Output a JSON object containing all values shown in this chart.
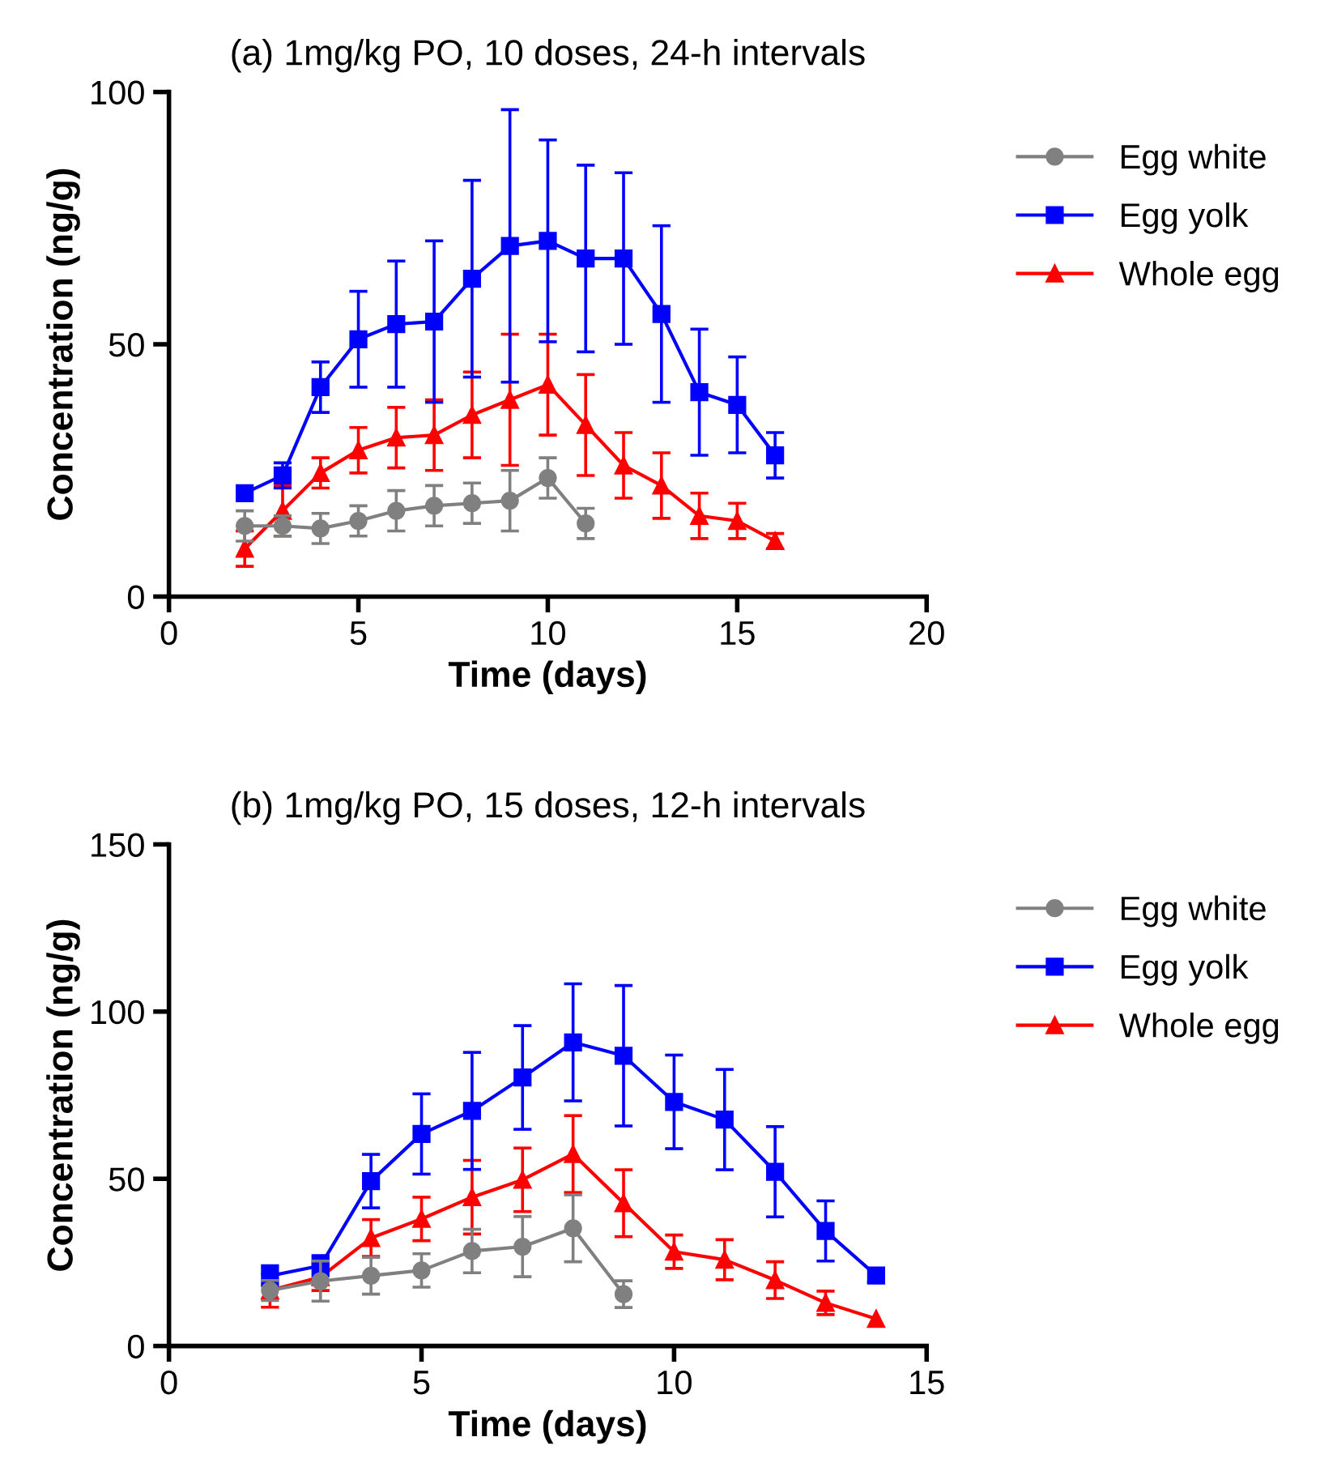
{
  "chart_data": [
    {
      "type": "line",
      "title": "(a) 1mg/kg PO, 10 doses, 24-h intervals",
      "xlabel": "Time (days)",
      "ylabel": "Concentration (ng/g)",
      "xlim": [
        0,
        20
      ],
      "xticks": [
        0,
        5,
        10,
        15,
        20
      ],
      "ylim": [
        0,
        100
      ],
      "yticks": [
        0,
        50,
        100
      ],
      "grid": false,
      "legend": "right",
      "series": [
        {
          "name": "Egg white",
          "color": "#808080",
          "marker": "circle",
          "x": [
            2,
            3,
            4,
            5,
            6,
            7,
            8,
            9,
            10,
            11
          ],
          "values": [
            14,
            14,
            13.5,
            15,
            17,
            18,
            18.5,
            19,
            23.5,
            14.5
          ],
          "errors": [
            3,
            2,
            3,
            3,
            4,
            4,
            4,
            6,
            4,
            3
          ]
        },
        {
          "name": "Egg yolk",
          "color": "#0000ff",
          "marker": "square",
          "x": [
            2,
            3,
            4,
            5,
            6,
            7,
            8,
            9,
            10,
            11,
            12,
            13,
            14,
            15,
            16
          ],
          "values": [
            20.5,
            24,
            41.5,
            51,
            54,
            54.5,
            63,
            69.5,
            70.5,
            67,
            67,
            56,
            40.5,
            38,
            28
          ],
          "errors": [
            null,
            2.5,
            5,
            9.5,
            12.5,
            16,
            19.5,
            27,
            20,
            18.5,
            17,
            17.5,
            12.5,
            9.5,
            4.5
          ]
        },
        {
          "name": "Whole egg",
          "color": "#ff0000",
          "marker": "triangle",
          "x": [
            2,
            3,
            4,
            5,
            6,
            7,
            8,
            9,
            10,
            11,
            12,
            13,
            14,
            15,
            16
          ],
          "values": [
            9.5,
            17,
            24.5,
            29,
            31.5,
            32,
            36,
            39,
            42,
            34,
            26,
            22,
            16,
            15,
            11
          ],
          "errors": [
            3.5,
            5,
            3,
            4.5,
            6,
            7,
            8.5,
            13,
            10,
            10,
            6.5,
            6.5,
            4.5,
            3.5,
            1.5
          ]
        }
      ]
    },
    {
      "type": "line",
      "title": "(b) 1mg/kg PO, 15 doses, 12-h intervals",
      "xlabel": "Time (days)",
      "ylabel": "Concentration (ng/g)",
      "xlim": [
        0,
        15
      ],
      "xticks": [
        0,
        5,
        10,
        15
      ],
      "ylim": [
        0,
        150
      ],
      "yticks": [
        0,
        50,
        100,
        150
      ],
      "grid": false,
      "legend": "right",
      "series": [
        {
          "name": "Egg white",
          "color": "#808080",
          "marker": "circle",
          "x": [
            2,
            3,
            4,
            5,
            6,
            7,
            8,
            9
          ],
          "values": [
            16.6,
            19.4,
            21,
            22.6,
            28.4,
            29.7,
            35.2,
            15.5
          ],
          "errors": [
            3,
            6,
            5.5,
            5,
            6.5,
            9,
            10,
            4
          ]
        },
        {
          "name": "Egg yolk",
          "color": "#0000ff",
          "marker": "square",
          "x": [
            2,
            3,
            4,
            5,
            6,
            7,
            8,
            9,
            10,
            11,
            12,
            13,
            14
          ],
          "values": [
            21,
            24,
            49.3,
            63.4,
            70.3,
            80.3,
            90.8,
            86.8,
            73,
            67.7,
            52.1,
            34.4,
            21.1
          ],
          "errors": [
            3,
            3,
            8,
            12,
            17.5,
            15.5,
            17.5,
            21,
            14,
            15,
            13.5,
            9,
            2
          ]
        },
        {
          "name": "Whole egg",
          "color": "#ff0000",
          "marker": "triangle",
          "x": [
            2,
            3,
            4,
            5,
            6,
            7,
            8,
            9,
            10,
            11,
            12,
            13,
            14
          ],
          "values": [
            16.6,
            20.6,
            32.3,
            38,
            44.5,
            49.7,
            57.4,
            42.7,
            28.2,
            25.8,
            19.7,
            12.9,
            8.1
          ],
          "errors": [
            5,
            4,
            5.5,
            6.5,
            11,
            9.5,
            11.5,
            10,
            5,
            6,
            5.5,
            3.5,
            null
          ]
        }
      ]
    }
  ]
}
